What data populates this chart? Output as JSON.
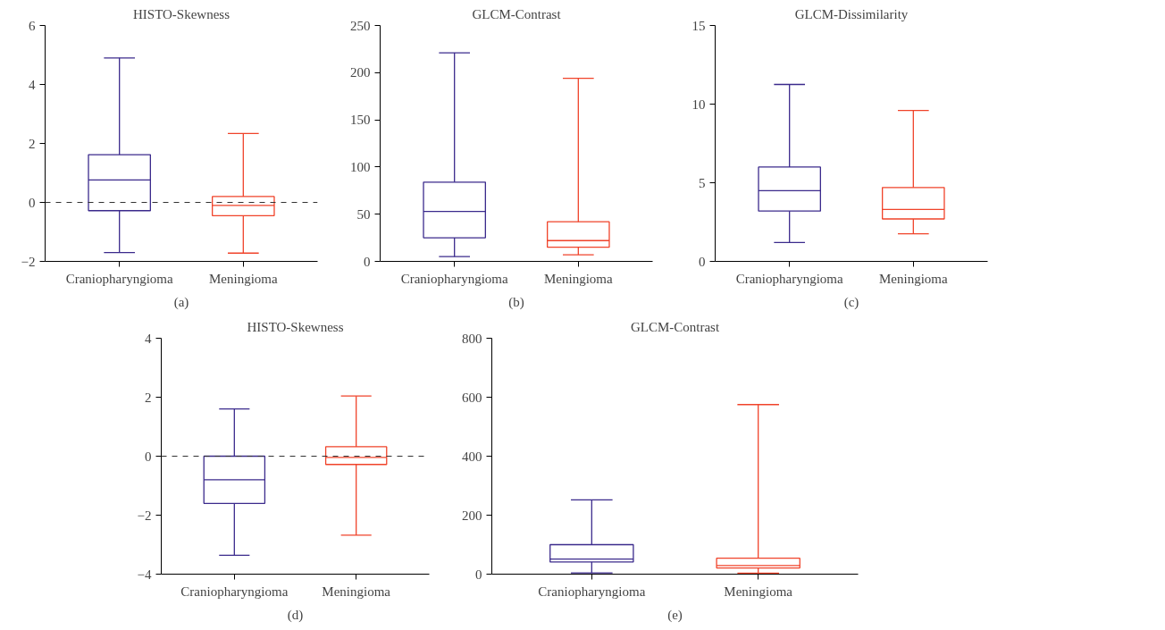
{
  "chart_data": [
    {
      "type": "box",
      "title": "HISTO-Skewness",
      "categories": [
        "Craniopharyngioma",
        "Meningioma"
      ],
      "colors": [
        "#3b2a8c",
        "#f0432a"
      ],
      "ylim": [
        -2,
        6
      ],
      "yticks": [
        -2,
        0,
        2,
        4,
        6
      ],
      "grid": false,
      "annotations": [
        "(a)"
      ],
      "ref_lines": [
        {
          "axis": "y",
          "value": 0,
          "color": "#333333",
          "line_style": "dashed"
        }
      ],
      "boxes": [
        {
          "low": -1.7,
          "q1": -0.28,
          "median": 0.76,
          "q3": 1.62,
          "high": 4.9
        },
        {
          "low": -1.72,
          "q1": -0.45,
          "median": -0.1,
          "q3": 0.2,
          "high": 2.34
        }
      ]
    },
    {
      "type": "box",
      "title": "GLCM-Contrast",
      "categories": [
        "Craniopharyngioma",
        "Meningioma"
      ],
      "colors": [
        "#3b2a8c",
        "#f0432a"
      ],
      "ylim": [
        0,
        250
      ],
      "yticks": [
        0,
        50,
        100,
        150,
        200,
        250
      ],
      "grid": false,
      "annotations": [
        "(b)"
      ],
      "boxes": [
        {
          "low": 5,
          "q1": 25,
          "median": 53,
          "q3": 84,
          "high": 221
        },
        {
          "low": 7,
          "q1": 15,
          "median": 22,
          "q3": 42,
          "high": 194
        }
      ]
    },
    {
      "type": "box",
      "title": "GLCM-Dissimilarity",
      "categories": [
        "Craniopharyngioma",
        "Meningioma"
      ],
      "colors": [
        "#3b2a8c",
        "#f0432a"
      ],
      "ylim": [
        0,
        15
      ],
      "yticks": [
        0,
        5,
        10,
        15
      ],
      "grid": false,
      "annotations": [
        "(c)"
      ],
      "boxes": [
        {
          "low": 1.2,
          "q1": 3.2,
          "median": 4.5,
          "q3": 6.0,
          "high": 11.25
        },
        {
          "low": 1.75,
          "q1": 2.7,
          "median": 3.3,
          "q3": 4.7,
          "high": 9.6
        }
      ]
    },
    {
      "type": "box",
      "title": "HISTO-Skewness",
      "categories": [
        "Craniopharyngioma",
        "Meningioma"
      ],
      "colors": [
        "#3b2a8c",
        "#f0432a"
      ],
      "ylim": [
        -4,
        4
      ],
      "yticks": [
        -4,
        -2,
        0,
        2,
        4
      ],
      "grid": false,
      "annotations": [
        "(d)"
      ],
      "ref_lines": [
        {
          "axis": "y",
          "value": 0,
          "color": "#333333",
          "line_style": "dashed"
        }
      ],
      "boxes": [
        {
          "low": -3.36,
          "q1": -1.6,
          "median": -0.8,
          "q3": 0.0,
          "high": 1.6
        },
        {
          "low": -2.68,
          "q1": -0.28,
          "median": -0.04,
          "q3": 0.32,
          "high": 2.04
        }
      ]
    },
    {
      "type": "box",
      "title": "GLCM-Contrast",
      "categories": [
        "Craniopharyngioma",
        "Meningioma"
      ],
      "colors": [
        "#3b2a8c",
        "#f0432a"
      ],
      "ylim": [
        0,
        800
      ],
      "yticks": [
        0,
        200,
        400,
        600,
        800
      ],
      "grid": false,
      "annotations": [
        "(e)"
      ],
      "boxes": [
        {
          "low": 4,
          "q1": 41,
          "median": 51,
          "q3": 100,
          "high": 252
        },
        {
          "low": 3,
          "q1": 21,
          "median": 29,
          "q3": 54,
          "high": 575
        }
      ]
    }
  ]
}
